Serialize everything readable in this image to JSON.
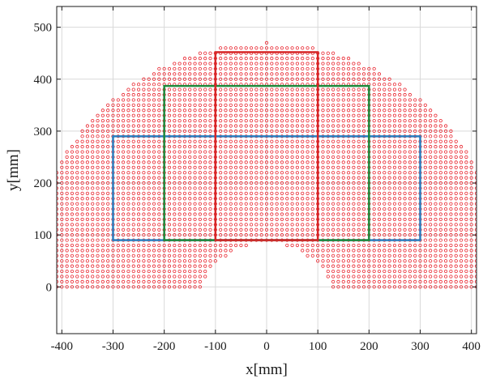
{
  "chart_data": {
    "type": "scatter",
    "title": "",
    "xlabel": "x[mm]",
    "ylabel": "y[mm]",
    "xlim": [
      -410,
      410
    ],
    "ylim": [
      -90,
      540
    ],
    "xticks": [
      -400,
      -300,
      -200,
      -100,
      0,
      100,
      200,
      300,
      400
    ],
    "yticks": [
      0,
      100,
      200,
      300,
      400,
      500
    ],
    "xtick_labels": [
      "-400",
      "-300",
      "-200",
      "-100",
      "0",
      "100",
      "200",
      "300",
      "400"
    ],
    "ytick_labels": [
      "0",
      "100",
      "200",
      "300",
      "400",
      "500"
    ],
    "grid": true,
    "workspace": {
      "marker": "open-circle",
      "color": "#e8202a",
      "grid_step": 10,
      "outer_radius": 470,
      "inner_radius": 140,
      "inner_center": [
        0,
        -55
      ],
      "y_min": 0
    },
    "rectangles": [
      {
        "color": "#2a7fc1",
        "x": [
          -300,
          300
        ],
        "y": [
          90,
          290
        ]
      },
      {
        "color": "#1e8a3c",
        "x": [
          -200,
          200
        ],
        "y": [
          90,
          387
        ]
      },
      {
        "color": "#d62728",
        "x": [
          -100,
          100
        ],
        "y": [
          90,
          452
        ]
      }
    ]
  }
}
